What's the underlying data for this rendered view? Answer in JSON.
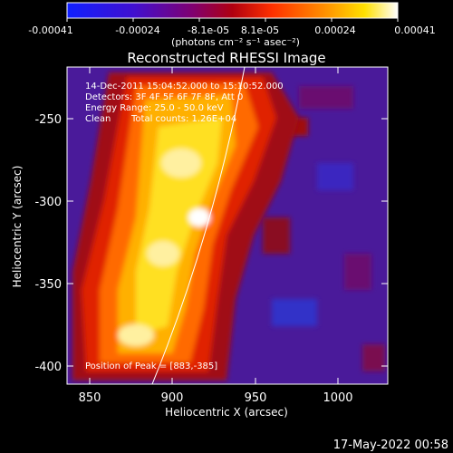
{
  "colorbar": {
    "ticks": [
      "-0.00041",
      "-0.00024",
      "-8.1e-05",
      "8.1e-05",
      "0.00024",
      "0.00041"
    ],
    "unit_label": "(photons cm⁻² s⁻¹ asec⁻²)"
  },
  "title": "Reconstructed RHESSI Image",
  "info": {
    "time_range": "14-Dec-2011 15:04:52.000 to 15:10:52.000",
    "detectors": "Detectors: 3F 4F 5F 6F 7F 8F, Att 0",
    "energy": "Energy Range: 25.0 - 50.0 keV",
    "algorithm": "Clean",
    "counts": "Total counts: 1.26E+04"
  },
  "peak_label": "Position of Peak = [883,-385]",
  "axes": {
    "xlabel": "Heliocentric X (arcsec)",
    "ylabel": "Heliocentric Y (arcsec)",
    "xticks": [
      "850",
      "900",
      "950",
      "1000"
    ],
    "yticks": [
      "-250",
      "-300",
      "-350",
      "-400"
    ],
    "xlim": [
      837,
      1028
    ],
    "ylim": [
      -410,
      -215
    ]
  },
  "footer": "17-May-2022 00:58"
}
